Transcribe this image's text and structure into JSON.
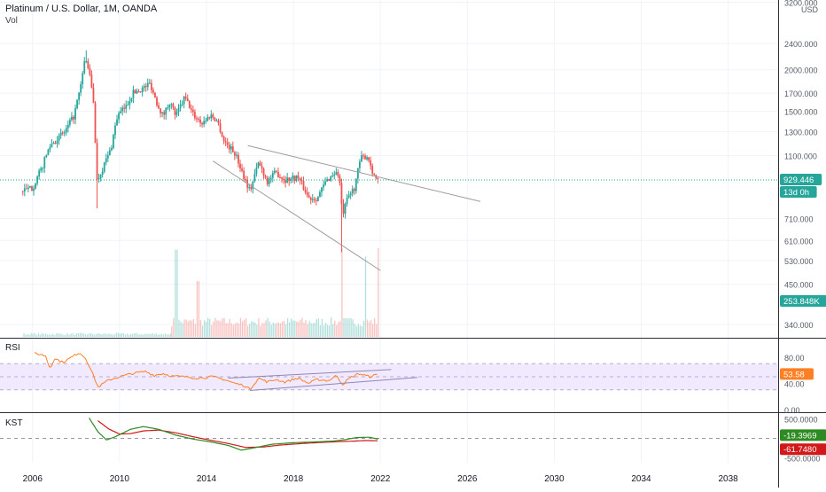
{
  "header": {
    "title": "Platinum / U.S. Dollar, 1M, OANDA",
    "volume_label": "Vol",
    "currency": "USD"
  },
  "colors": {
    "up": "#26a69a",
    "down": "#ef5350",
    "trendline": "#9c9c9c",
    "rsi_line": "#ff7f24",
    "rsi_band": "#e6d8ff",
    "kst_line": "#2e8b22",
    "kst_signal": "#d2191a",
    "price_badge": "#26a69a",
    "axis_text": "#555b66",
    "grid": "#f0f3fa"
  },
  "rsi_pane": {
    "label": "RSI",
    "value_badge": "53.58"
  },
  "kst_pane": {
    "label": "KST",
    "kst_badge": "-19.3969",
    "signal_badge": "-61.7480"
  },
  "badges": {
    "last_price": "929.446",
    "countdown": "13d 0h",
    "volume": "253.848K"
  },
  "chart_data": {
    "type": "candlestick",
    "time_axis": {
      "tick_labels": [
        "2006",
        "2010",
        "2014",
        "2018",
        "2022",
        "2026",
        "2030",
        "2034",
        "2038"
      ],
      "range": [
        2004.5,
        2040.3
      ]
    },
    "price_axis": {
      "scale": "log",
      "tick_labels": [
        "3200.000",
        "2400.000",
        "2000.000",
        "1700.000",
        "1500.000",
        "1300.000",
        "1100.000",
        "929.446",
        "710.000",
        "610.000",
        "530.000",
        "450.000",
        "340.000"
      ],
      "tick_values": [
        3200,
        2400,
        2000,
        1700,
        1500,
        1300,
        1100,
        929.446,
        710,
        610,
        530,
        450,
        340
      ],
      "range": [
        310,
        3250
      ]
    },
    "price_keypoints": [
      [
        2005.55,
        860
      ],
      [
        2006.0,
        880
      ],
      [
        2006.4,
        1000
      ],
      [
        2006.8,
        1180
      ],
      [
        2007.5,
        1300
      ],
      [
        2007.9,
        1450
      ],
      [
        2008.2,
        1750
      ],
      [
        2008.4,
        2150
      ],
      [
        2008.55,
        2050
      ],
      [
        2008.8,
        1600
      ],
      [
        2008.95,
        920
      ],
      [
        2009.2,
        1000
      ],
      [
        2009.6,
        1150
      ],
      [
        2009.9,
        1450
      ],
      [
        2010.3,
        1550
      ],
      [
        2010.6,
        1700
      ],
      [
        2011.1,
        1760
      ],
      [
        2011.4,
        1820
      ],
      [
        2011.7,
        1600
      ],
      [
        2012.0,
        1450
      ],
      [
        2012.3,
        1600
      ],
      [
        2012.6,
        1450
      ],
      [
        2013.0,
        1650
      ],
      [
        2013.4,
        1460
      ],
      [
        2013.8,
        1380
      ],
      [
        2014.2,
        1460
      ],
      [
        2014.5,
        1400
      ],
      [
        2014.8,
        1220
      ],
      [
        2015.3,
        1120
      ],
      [
        2015.7,
        960
      ],
      [
        2016.0,
        860
      ],
      [
        2016.4,
        1050
      ],
      [
        2016.8,
        920
      ],
      [
        2017.2,
        980
      ],
      [
        2017.6,
        930
      ],
      [
        2018.2,
        950
      ],
      [
        2018.7,
        820
      ],
      [
        2019.1,
        820
      ],
      [
        2019.5,
        920
      ],
      [
        2019.9,
        980
      ],
      [
        2020.1,
        960
      ],
      [
        2020.25,
        720
      ],
      [
        2020.5,
        820
      ],
      [
        2020.8,
        880
      ],
      [
        2021.1,
        1080
      ],
      [
        2021.4,
        1100
      ],
      [
        2021.7,
        960
      ],
      [
        2021.9,
        929.446
      ]
    ],
    "wick_extremes": [
      {
        "year": 2008.45,
        "high": 2290
      },
      {
        "year": 2008.95,
        "low": 763
      },
      {
        "year": 2020.22,
        "low": 562
      }
    ],
    "volume": {
      "start_year": 2012.4,
      "end_year": 2021.9,
      "max_value": 254000,
      "last_value": 253848,
      "spikes": [
        {
          "year": 2012.6,
          "value": 250000
        },
        {
          "year": 2013.6,
          "value": 160000
        },
        {
          "year": 2020.2,
          "value": 254000
        },
        {
          "year": 2021.3,
          "value": 230000
        }
      ]
    },
    "trendlines": [
      {
        "name": "upper wedge",
        "points": [
          [
            2015.9,
            1180
          ],
          [
            2026.6,
            800
          ]
        ]
      },
      {
        "name": "lower wedge",
        "points": [
          [
            2014.3,
            1060
          ],
          [
            2022.0,
            495
          ]
        ]
      }
    ],
    "rsi": {
      "range": [
        0,
        100
      ],
      "tick_labels": [
        "80.00",
        "40.00",
        "0.00"
      ],
      "tick_values": [
        80,
        40,
        0
      ],
      "band": [
        30,
        70
      ],
      "last": 53.58,
      "keypoints": [
        [
          2006.1,
          86
        ],
        [
          2006.6,
          82
        ],
        [
          2006.8,
          62
        ],
        [
          2007.0,
          78
        ],
        [
          2007.4,
          72
        ],
        [
          2007.9,
          82
        ],
        [
          2008.15,
          87
        ],
        [
          2008.45,
          78
        ],
        [
          2008.8,
          52
        ],
        [
          2009.0,
          34
        ],
        [
          2009.5,
          45
        ],
        [
          2010.0,
          50
        ],
        [
          2010.6,
          55
        ],
        [
          2011.2,
          58
        ],
        [
          2011.6,
          52
        ],
        [
          2012.0,
          55
        ],
        [
          2012.4,
          51
        ],
        [
          2013.0,
          50
        ],
        [
          2013.6,
          48
        ],
        [
          2014.3,
          50
        ],
        [
          2014.8,
          46
        ],
        [
          2015.3,
          40
        ],
        [
          2015.7,
          37
        ],
        [
          2016.0,
          31
        ],
        [
          2016.4,
          48
        ],
        [
          2016.8,
          42
        ],
        [
          2017.2,
          46
        ],
        [
          2017.6,
          42
        ],
        [
          2018.2,
          48
        ],
        [
          2018.7,
          40
        ],
        [
          2019.1,
          46
        ],
        [
          2019.6,
          44
        ],
        [
          2020.0,
          52
        ],
        [
          2020.25,
          38
        ],
        [
          2020.6,
          48
        ],
        [
          2021.0,
          55
        ],
        [
          2021.5,
          50
        ],
        [
          2021.9,
          53.58
        ]
      ],
      "trendlines": [
        {
          "name": "rsi upper",
          "points": [
            [
              2015.0,
              48
            ],
            [
              2022.5,
              61
            ]
          ]
        },
        {
          "name": "rsi lower",
          "points": [
            [
              2016.0,
              29
            ],
            [
              2023.7,
              49
            ]
          ]
        }
      ]
    },
    "kst": {
      "range": [
        -620,
        620
      ],
      "tick_labels": [
        "500.0000",
        "-500.0000"
      ],
      "tick_values": [
        500,
        -500
      ],
      "kst_last": -19.3969,
      "signal_last": -61.748,
      "kst_keypoints": [
        [
          2008.6,
          520
        ],
        [
          2009.0,
          170
        ],
        [
          2009.4,
          -40
        ],
        [
          2009.8,
          40
        ],
        [
          2010.5,
          230
        ],
        [
          2011.1,
          300
        ],
        [
          2011.8,
          230
        ],
        [
          2012.6,
          80
        ],
        [
          2013.4,
          -20
        ],
        [
          2014.2,
          -90
        ],
        [
          2015.0,
          -180
        ],
        [
          2015.6,
          -300
        ],
        [
          2016.2,
          -240
        ],
        [
          2017.0,
          -150
        ],
        [
          2018.0,
          -110
        ],
        [
          2019.0,
          -90
        ],
        [
          2019.8,
          -70
        ],
        [
          2020.4,
          -30
        ],
        [
          2020.9,
          20
        ],
        [
          2021.5,
          30
        ],
        [
          2021.9,
          -19.3969
        ]
      ],
      "signal_keypoints": [
        [
          2009.0,
          450
        ],
        [
          2009.5,
          240
        ],
        [
          2010.0,
          110
        ],
        [
          2010.5,
          120
        ],
        [
          2011.1,
          190
        ],
        [
          2011.8,
          210
        ],
        [
          2012.6,
          140
        ],
        [
          2013.4,
          40
        ],
        [
          2014.2,
          -50
        ],
        [
          2015.0,
          -130
        ],
        [
          2015.8,
          -230
        ],
        [
          2016.6,
          -220
        ],
        [
          2017.4,
          -170
        ],
        [
          2018.4,
          -130
        ],
        [
          2019.4,
          -100
        ],
        [
          2020.2,
          -80
        ],
        [
          2020.8,
          -70
        ],
        [
          2021.3,
          -55
        ],
        [
          2021.9,
          -61.748
        ]
      ]
    }
  }
}
